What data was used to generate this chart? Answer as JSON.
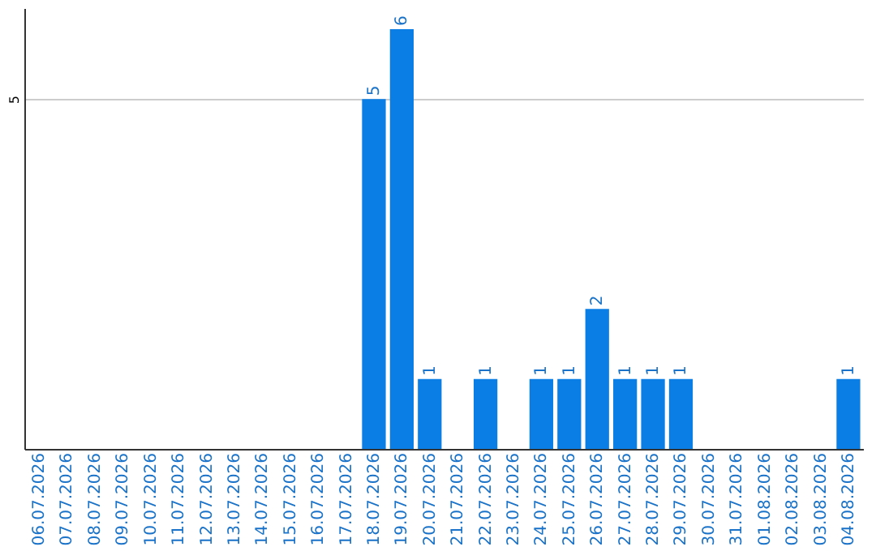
{
  "chart_data": {
    "type": "bar",
    "categories": [
      "06.07.2026",
      "07.07.2026",
      "08.07.2026",
      "09.07.2026",
      "10.07.2026",
      "11.07.2026",
      "12.07.2026",
      "13.07.2026",
      "14.07.2026",
      "15.07.2026",
      "16.07.2026",
      "17.07.2026",
      "18.07.2026",
      "19.07.2026",
      "20.07.2026",
      "21.07.2026",
      "22.07.2026",
      "23.07.2026",
      "24.07.2026",
      "25.07.2026",
      "26.07.2026",
      "27.07.2026",
      "28.07.2026",
      "29.07.2026",
      "30.07.2026",
      "31.07.2026",
      "01.08.2026",
      "02.08.2026",
      "03.08.2026",
      "04.08.2026"
    ],
    "values": [
      null,
      null,
      null,
      null,
      null,
      null,
      null,
      null,
      null,
      null,
      null,
      null,
      5,
      6,
      1,
      null,
      1,
      null,
      1,
      1,
      2,
      1,
      1,
      1,
      null,
      null,
      null,
      null,
      null,
      1
    ],
    "data_labels": true,
    "color": "#0a7ee4",
    "ylim": [
      0,
      6.3
    ],
    "yticks": [
      5
    ],
    "grid": "y"
  }
}
